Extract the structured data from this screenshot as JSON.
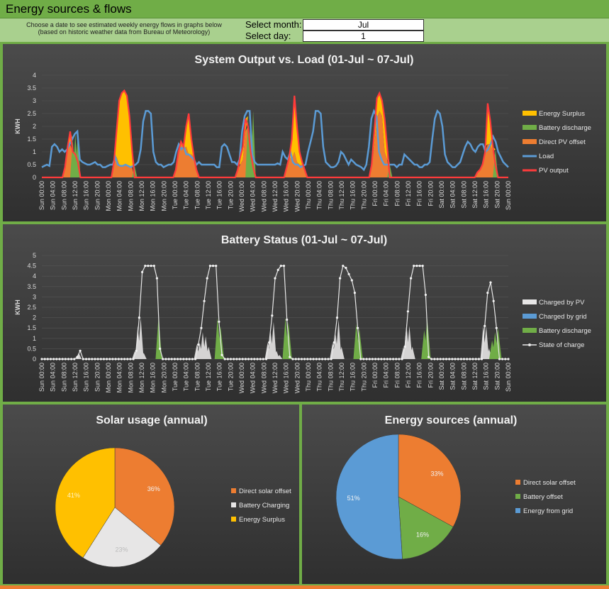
{
  "header": {
    "title": "Energy sources & flows"
  },
  "controls": {
    "help_line1": "Choose a date to see estimated weekly energy flows in graphs below",
    "help_line2": "(based on historic weather data from Bureau of Meteorology)",
    "month_label": "Select month:",
    "month_value": "Jul",
    "day_label": "Select day:",
    "day_value": "1"
  },
  "colors": {
    "surplus": "#ffc000",
    "battery": "#70ad47",
    "direct": "#ed7d31",
    "load": "#5b9bd5",
    "pv": "#ff3b3b",
    "charged_pv": "#e7e6e6",
    "grid": "#5b9bd5"
  },
  "chart_data": [
    {
      "type": "area",
      "title": "System Output vs. Load (01-Jul ~ 07-Jul)",
      "ylabel": "KWH",
      "ylim": [
        0,
        4
      ],
      "yticks": [
        "0",
        "0.5",
        "1",
        "1.5",
        "2",
        "2.5",
        "3",
        "3.5",
        "4"
      ],
      "x_labels": [
        "Sun 00:00",
        "Sun 04:00",
        "Sun 08:00",
        "Sun 12:00",
        "Sun 16:00",
        "Sun 20:00",
        "Mon 00:00",
        "Mon 04:00",
        "Mon 08:00",
        "Mon 12:00",
        "Mon 16:00",
        "Mon 20:00",
        "Tue 00:00",
        "Tue 04:00",
        "Tue 08:00",
        "Tue 12:00",
        "Tue 16:00",
        "Tue 20:00",
        "Wed 00:00",
        "Wed 04:00",
        "Wed 08:00",
        "Wed 12:00",
        "Wed 16:00",
        "Wed 20:00",
        "Thu 00:00",
        "Thu 04:00",
        "Thu 08:00",
        "Thu 12:00",
        "Thu 16:00",
        "Thu 20:00",
        "Fri 00:00",
        "Fri 04:00",
        "Fri 08:00",
        "Fri 12:00",
        "Fri 16:00",
        "Fri 20:00",
        "Sat 00:00",
        "Sat 04:00",
        "Sat 08:00",
        "Sat 12:00",
        "Sat 16:00",
        "Sat 20:00",
        "Sun 00:00"
      ],
      "legend": [
        "Energy Surplus",
        "Battery discharge",
        "Direct PV offset",
        "Load",
        "PV output"
      ],
      "series": [
        {
          "name": "Load",
          "values": [
            0.4,
            0.45,
            0.5,
            0.45,
            1.2,
            1.3,
            1.2,
            1.0,
            1.1,
            1.0,
            1.1,
            1.3,
            1.5,
            1.7,
            1.8,
            0.7,
            0.6,
            0.55,
            0.5,
            0.5,
            0.55,
            0.6,
            0.5,
            0.5,
            0.4,
            0.4,
            0.45,
            0.5,
            0.5,
            0.8,
            0.5,
            0.45,
            0.45,
            0.5,
            0.45,
            0.4,
            0.45,
            0.5,
            0.6,
            1.1,
            2.2,
            2.6,
            2.6,
            2.5,
            1.0,
            0.6,
            0.5,
            0.5,
            0.4,
            0.45,
            0.5,
            0.5,
            0.6,
            1.0,
            1.3,
            1.1,
            1.2,
            0.9,
            0.9,
            0.8,
            0.7,
            0.5,
            0.6,
            0.5,
            0.5,
            0.5,
            0.5,
            0.5,
            0.5,
            0.4,
            0.4,
            1.2,
            1.3,
            1.2,
            0.9,
            0.6,
            0.6,
            0.5,
            0.7,
            1.8,
            2.4,
            2.6,
            2.6,
            0.9,
            0.6,
            0.5,
            0.5,
            0.5,
            0.5,
            0.5,
            0.5,
            0.5,
            0.5,
            0.55,
            0.5,
            1.0,
            0.8,
            0.7,
            1.0,
            0.6,
            0.5,
            0.5,
            0.4,
            0.45,
            0.5,
            1.0,
            1.4,
            1.8,
            2.6,
            2.6,
            2.5,
            1.2,
            0.6,
            0.5,
            0.4,
            0.4,
            0.45,
            0.6,
            1.0,
            0.9,
            0.7,
            0.5,
            0.7,
            0.6,
            0.5,
            0.45,
            0.4,
            0.3,
            0.5,
            1.2,
            2.3,
            2.6,
            2.4,
            1.0,
            0.7,
            0.5,
            0.5,
            0.5,
            0.5,
            0.5,
            0.4,
            0.5,
            0.5,
            0.9,
            0.8,
            0.7,
            0.6,
            0.5,
            0.5,
            0.4,
            0.4,
            0.5,
            0.5,
            0.6,
            1.5,
            2.3,
            2.6,
            2.5,
            2.0,
            0.9,
            0.6,
            0.5,
            0.4,
            0.4,
            0.5,
            0.6,
            0.9,
            1.2,
            1.4,
            1.3,
            1.1,
            1.0,
            1.2,
            1.3,
            1.3,
            1.0,
            1.1,
            1.3,
            1.6,
            1.4,
            1.0,
            0.8,
            0.6,
            0.5,
            0.4
          ]
        },
        {
          "name": "PV output",
          "values": [
            0,
            0,
            0,
            0,
            0,
            0,
            0,
            0,
            0,
            0.4,
            1.2,
            1.8,
            1.0,
            0.9,
            0.6,
            0,
            0,
            0,
            0,
            0,
            0,
            0,
            0,
            0,
            0,
            0,
            0,
            0,
            0.6,
            1.8,
            3.0,
            3.3,
            3.4,
            3.2,
            2.4,
            1.1,
            0,
            0,
            0,
            0,
            0,
            0,
            0,
            0,
            0,
            0,
            0,
            0,
            0,
            0,
            0,
            0,
            0.3,
            1.0,
            1.4,
            1.2,
            2.0,
            2.5,
            1.5,
            0.8,
            0.3,
            0,
            0,
            0,
            0,
            0,
            0,
            0,
            0,
            0,
            0,
            0,
            0,
            0,
            0,
            0,
            0.3,
            0.8,
            1.2,
            2.3,
            2.0,
            1.0,
            0.4,
            0,
            0,
            0,
            0,
            0,
            0,
            0,
            0,
            0,
            0,
            0,
            0,
            0.4,
            0.8,
            1.5,
            3.2,
            2.0,
            1.0,
            0.6,
            0.3,
            0,
            0,
            0,
            0,
            0,
            0,
            0,
            0,
            0,
            0,
            0,
            0,
            0,
            0,
            0,
            0,
            0,
            0,
            0,
            0,
            0,
            0,
            0,
            0,
            0,
            0.5,
            1.8,
            3.1,
            3.3,
            3.0,
            2.3,
            1.2,
            0,
            0,
            0,
            0,
            0,
            0,
            0,
            0,
            0,
            0,
            0,
            0,
            0,
            0,
            0,
            0,
            0,
            0,
            0,
            0,
            0,
            0,
            0,
            0,
            0,
            0,
            0,
            0,
            0,
            0,
            0,
            0,
            0,
            0,
            0.2,
            0.3,
            0.5,
            1.0,
            2.9,
            2.2,
            1.2,
            0.5,
            0,
            0,
            0,
            0,
            0
          ]
        }
      ]
    },
    {
      "type": "area",
      "title": "Battery Status (01-Jul ~ 07-Jul)",
      "ylabel": "KWH",
      "ylim": [
        0,
        5
      ],
      "yticks": [
        "0",
        "0.5",
        "1",
        "1.5",
        "2",
        "2.5",
        "3",
        "3.5",
        "4",
        "4.5",
        "5"
      ],
      "x_labels": [
        "Sun 00:00",
        "Sun 04:00",
        "Sun 08:00",
        "Sun 12:00",
        "Sun 16:00",
        "Sun 20:00",
        "Mon 00:00",
        "Mon 04:00",
        "Mon 08:00",
        "Mon 12:00",
        "Mon 16:00",
        "Mon 20:00",
        "Tue 00:00",
        "Tue 04:00",
        "Tue 08:00",
        "Tue 12:00",
        "Tue 16:00",
        "Tue 20:00",
        "Wed 00:00",
        "Wed 04:00",
        "Wed 08:00",
        "Wed 12:00",
        "Wed 16:00",
        "Wed 20:00",
        "Thu 00:00",
        "Thu 04:00",
        "Thu 08:00",
        "Thu 12:00",
        "Thu 16:00",
        "Thu 20:00",
        "Fri 00:00",
        "Fri 04:00",
        "Fri 08:00",
        "Fri 12:00",
        "Fri 16:00",
        "Fri 20:00",
        "Sat 00:00",
        "Sat 04:00",
        "Sat 08:00",
        "Sat 12:00",
        "Sat 16:00",
        "Sat 20:00",
        "Sun 00:00"
      ],
      "legend": [
        "Charged by PV",
        "Charged by grid",
        "Battery discharge",
        "State of charge"
      ],
      "series": [
        {
          "name": "State of charge",
          "values": [
            0,
            0,
            0,
            0,
            0,
            0,
            0,
            0,
            0,
            0,
            0,
            0,
            0.1,
            0.4,
            0,
            0,
            0,
            0,
            0,
            0,
            0,
            0,
            0,
            0,
            0,
            0,
            0,
            0,
            0,
            0,
            0,
            0,
            0.4,
            2.0,
            4.2,
            4.5,
            4.5,
            4.5,
            4.5,
            3.9,
            0.5,
            0,
            0,
            0,
            0,
            0,
            0,
            0,
            0,
            0,
            0,
            0,
            0,
            0.7,
            1.5,
            2.8,
            3.9,
            4.5,
            4.5,
            4.5,
            1.8,
            0.2,
            0,
            0,
            0,
            0,
            0,
            0,
            0,
            0,
            0,
            0,
            0,
            0,
            0,
            0,
            0,
            0.8,
            2.1,
            3.9,
            4.3,
            4.5,
            4.5,
            1.9,
            0.1,
            0,
            0,
            0,
            0,
            0,
            0,
            0,
            0,
            0,
            0,
            0,
            0,
            0,
            0,
            0.8,
            2.0,
            3.9,
            4.5,
            4.4,
            4.1,
            3.8,
            3.2,
            1.5,
            0,
            0,
            0,
            0,
            0,
            0,
            0,
            0,
            0,
            0,
            0,
            0,
            0,
            0,
            0,
            0.6,
            2.3,
            3.9,
            4.5,
            4.5,
            4.5,
            4.5,
            3.1,
            0.1,
            0,
            0,
            0,
            0,
            0,
            0,
            0,
            0,
            0,
            0,
            0,
            0,
            0,
            0,
            0,
            0,
            0,
            0,
            1.6,
            3.2,
            3.7,
            2.8,
            1.5,
            0,
            0,
            0,
            0
          ]
        }
      ]
    },
    {
      "type": "pie",
      "title": "Solar usage (annual)",
      "labels": [
        "Direct solar offset",
        "Battery Charging",
        "Energy Surplus"
      ],
      "values": [
        36,
        23,
        41
      ],
      "data_labels": [
        "36%",
        "23%",
        "41%"
      ],
      "colors": [
        "#ed7d31",
        "#e7e6e6",
        "#ffc000"
      ]
    },
    {
      "type": "pie",
      "title": "Energy sources (annual)",
      "labels": [
        "Direct solar offset",
        "Battery offset",
        "Energy from grid"
      ],
      "values": [
        33,
        16,
        51
      ],
      "data_labels": [
        "33%",
        "16%",
        "51%"
      ],
      "colors": [
        "#ed7d31",
        "#70ad47",
        "#5b9bd5"
      ]
    }
  ]
}
